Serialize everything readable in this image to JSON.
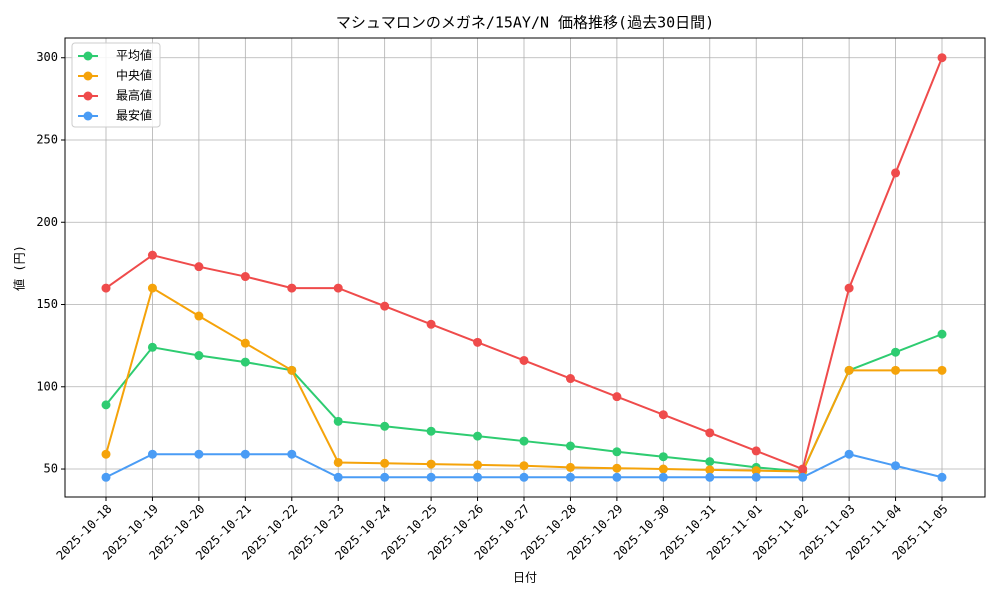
{
  "chart_data": {
    "type": "line",
    "title": "マシュマロンのメガネ/15AY/N 価格推移(過去30日間)",
    "x_label": "日付",
    "y_label": "値 (円)",
    "categories": [
      "2025-10-18",
      "2025-10-19",
      "2025-10-20",
      "2025-10-21",
      "2025-10-22",
      "2025-10-23",
      "2025-10-24",
      "2025-10-25",
      "2025-10-26",
      "2025-10-27",
      "2025-10-28",
      "2025-10-29",
      "2025-10-30",
      "2025-10-31",
      "2025-11-01",
      "2025-11-02",
      "2025-11-03",
      "2025-11-04",
      "2025-11-05"
    ],
    "series": [
      {
        "name": "平均値",
        "color": "#2ecc71",
        "values": [
          89,
          124,
          119,
          115,
          110,
          79,
          76,
          73,
          70,
          67,
          64,
          60.5,
          57.5,
          54.5,
          51,
          48.5,
          110,
          121,
          132
        ]
      },
      {
        "name": "中央値",
        "color": "#f5a30a",
        "values": [
          59,
          160,
          143,
          126.5,
          110,
          54,
          53.5,
          53,
          52.5,
          52,
          51,
          50.5,
          50,
          49.5,
          49,
          48.5,
          110,
          110,
          110
        ]
      },
      {
        "name": "最高値",
        "color": "#ef4b4b",
        "values": [
          160,
          180,
          173,
          167,
          160,
          160,
          149,
          138,
          127,
          116,
          105,
          94,
          83,
          72,
          61,
          50,
          160,
          230,
          300
        ]
      },
      {
        "name": "最安値",
        "color": "#4a9cf5",
        "values": [
          45,
          59,
          59,
          59,
          59,
          45,
          45,
          45,
          45,
          45,
          45,
          45,
          45,
          45,
          45,
          45,
          59,
          52,
          45
        ]
      }
    ],
    "ylim": [
      33,
      312
    ],
    "yticks": [
      50,
      100,
      150,
      200,
      250,
      300
    ],
    "grid": true,
    "legend": "upper-left"
  }
}
